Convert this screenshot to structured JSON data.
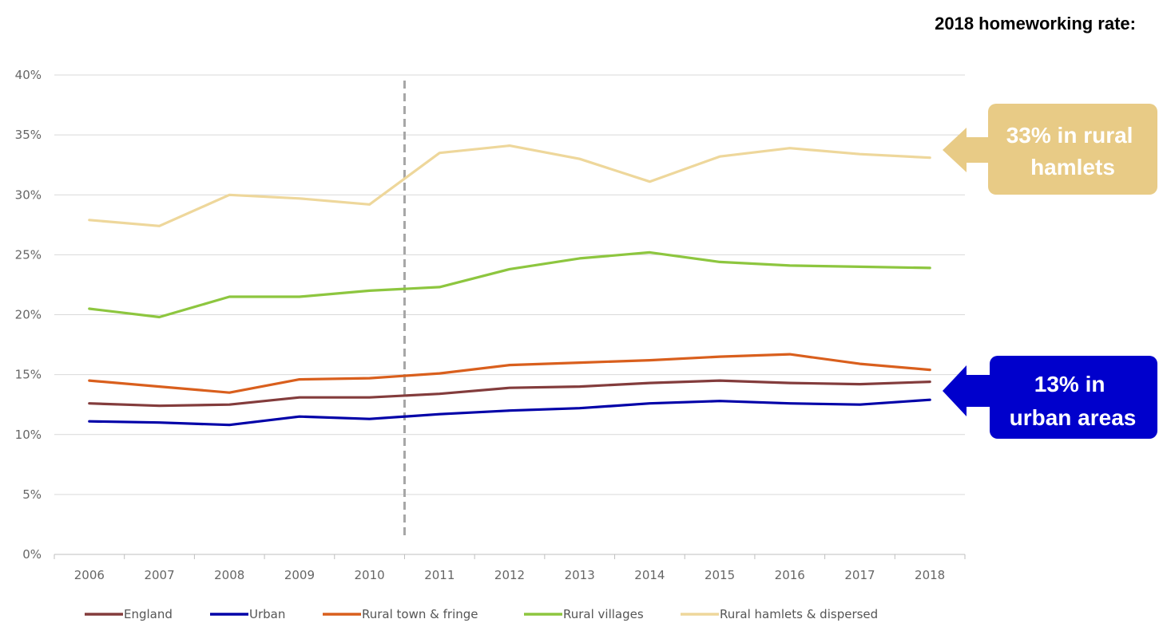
{
  "heading": "2018 homeworking rate:",
  "callouts": [
    {
      "lines": [
        "33% in rural",
        "hamlets"
      ],
      "color": "#E8CB86"
    },
    {
      "lines": [
        "13% in",
        "urban areas"
      ],
      "color": "#0000CC"
    }
  ],
  "chart_data": {
    "type": "line",
    "categories": [
      "2006",
      "2007",
      "2008",
      "2009",
      "2010",
      "2011",
      "2012",
      "2013",
      "2014",
      "2015",
      "2016",
      "2017",
      "2018"
    ],
    "ylim": [
      0,
      40
    ],
    "yticks": [
      0,
      5,
      10,
      15,
      20,
      25,
      30,
      35,
      40
    ],
    "ytick_labels": [
      "0%",
      "5%",
      "10%",
      "15%",
      "20%",
      "25%",
      "30%",
      "35%",
      "40%"
    ],
    "grid": true,
    "legend_position": "bottom",
    "reference_line": {
      "style": "dashed",
      "between": [
        "2010",
        "2011"
      ]
    },
    "series": [
      {
        "name": "England",
        "color": "#833C3C",
        "values": [
          12.6,
          12.4,
          12.5,
          13.1,
          13.1,
          13.4,
          13.9,
          14.0,
          14.3,
          14.5,
          14.3,
          14.2,
          14.4
        ]
      },
      {
        "name": "Urban",
        "color": "#0000A8",
        "values": [
          11.1,
          11.0,
          10.8,
          11.5,
          11.3,
          11.7,
          12.0,
          12.2,
          12.6,
          12.8,
          12.6,
          12.5,
          12.9
        ]
      },
      {
        "name": "Rural town & fringe",
        "color": "#D95F1D",
        "values": [
          14.5,
          14.0,
          13.5,
          14.6,
          14.7,
          15.1,
          15.8,
          16.0,
          16.2,
          16.5,
          16.7,
          15.9,
          15.4
        ]
      },
      {
        "name": "Rural villages",
        "color": "#8DC63F",
        "values": [
          20.5,
          19.8,
          21.5,
          21.5,
          22.0,
          22.3,
          23.8,
          24.7,
          25.2,
          24.4,
          24.1,
          24.0,
          23.9
        ]
      },
      {
        "name": "Rural hamlets & dispersed",
        "color": "#EED79B",
        "values": [
          27.9,
          27.4,
          30.0,
          29.7,
          29.2,
          33.5,
          34.1,
          33.0,
          31.1,
          33.2,
          33.9,
          33.4,
          33.1
        ]
      }
    ]
  }
}
